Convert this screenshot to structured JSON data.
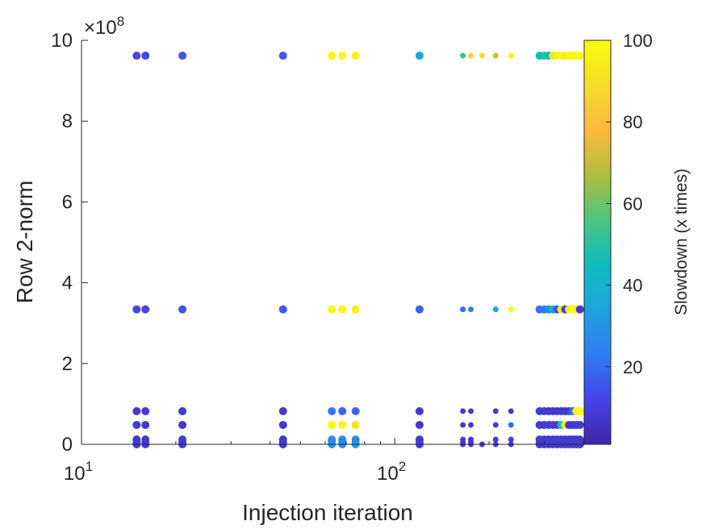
{
  "chart_data": {
    "type": "scatter",
    "title": "",
    "xlabel": "Injection iteration",
    "ylabel": "Row 2-norm",
    "xscale": "log",
    "xlim": [
      10,
      400
    ],
    "ylim": [
      0,
      1000000000
    ],
    "y_multiplier_label": "×10",
    "y_multiplier_exponent": "8",
    "x_ticks": [
      {
        "value": 10,
        "base": "10",
        "exp": "1"
      },
      {
        "value": 100,
        "base": "10",
        "exp": "2"
      }
    ],
    "y_ticks": [
      {
        "value": 0,
        "label": "0"
      },
      {
        "value": 200000000,
        "label": "2"
      },
      {
        "value": 400000000,
        "label": "4"
      },
      {
        "value": 600000000,
        "label": "6"
      },
      {
        "value": 800000000,
        "label": "8"
      },
      {
        "value": 1000000000,
        "label": "10"
      }
    ],
    "colorbar": {
      "label": "Slowdown (x times)",
      "range": [
        1,
        100
      ],
      "ticks": [
        {
          "value": 20,
          "label": "20"
        },
        {
          "value": 40,
          "label": "40"
        },
        {
          "value": 60,
          "label": "60"
        },
        {
          "value": 80,
          "label": "80"
        },
        {
          "value": 100,
          "label": "100"
        }
      ],
      "colormap": [
        "#3e26a8",
        "#4744e8",
        "#2f7cf6",
        "#1fa3de",
        "#0fbbbd",
        "#4ac580",
        "#b0bd3b",
        "#fbba3e",
        "#f4dd2a",
        "#f9fb0e"
      ]
    },
    "rows": [
      962000000,
      334000000,
      82000000,
      48000000,
      12000000,
      5000000,
      0
    ],
    "x": [
      15,
      16,
      21,
      44,
      63,
      68,
      75,
      120,
      165,
      175,
      190,
      210,
      235,
      290,
      300,
      310,
      320,
      330,
      340,
      350,
      360,
      370,
      380,
      390
    ],
    "points": [
      {
        "x": 15,
        "y": 962000000,
        "slowdown": 12
      },
      {
        "x": 16,
        "y": 962000000,
        "slowdown": 12
      },
      {
        "x": 21,
        "y": 962000000,
        "slowdown": 15
      },
      {
        "x": 44,
        "y": 962000000,
        "slowdown": 16
      },
      {
        "x": 63,
        "y": 962000000,
        "slowdown": 98
      },
      {
        "x": 68,
        "y": 962000000,
        "slowdown": 98
      },
      {
        "x": 75,
        "y": 962000000,
        "slowdown": 96
      },
      {
        "x": 120,
        "y": 962000000,
        "slowdown": 35
      },
      {
        "x": 165,
        "y": 962000000,
        "slowdown": 52
      },
      {
        "x": 175,
        "y": 962000000,
        "slowdown": 85
      },
      {
        "x": 190,
        "y": 962000000,
        "slowdown": 90
      },
      {
        "x": 210,
        "y": 962000000,
        "slowdown": 70
      },
      {
        "x": 235,
        "y": 962000000,
        "slowdown": 97
      },
      {
        "x": 290,
        "y": 962000000,
        "slowdown": 45
      },
      {
        "x": 300,
        "y": 962000000,
        "slowdown": 50
      },
      {
        "x": 310,
        "y": 962000000,
        "slowdown": 44
      },
      {
        "x": 320,
        "y": 962000000,
        "slowdown": 93
      },
      {
        "x": 330,
        "y": 962000000,
        "slowdown": 97
      },
      {
        "x": 340,
        "y": 962000000,
        "slowdown": 99
      },
      {
        "x": 350,
        "y": 962000000,
        "slowdown": 95
      },
      {
        "x": 360,
        "y": 962000000,
        "slowdown": 97
      },
      {
        "x": 370,
        "y": 962000000,
        "slowdown": 99
      },
      {
        "x": 380,
        "y": 962000000,
        "slowdown": 98
      },
      {
        "x": 390,
        "y": 962000000,
        "slowdown": 99
      },
      {
        "x": 15,
        "y": 334000000,
        "slowdown": 12
      },
      {
        "x": 16,
        "y": 334000000,
        "slowdown": 12
      },
      {
        "x": 21,
        "y": 334000000,
        "slowdown": 15
      },
      {
        "x": 44,
        "y": 334000000,
        "slowdown": 16
      },
      {
        "x": 63,
        "y": 334000000,
        "slowdown": 98
      },
      {
        "x": 68,
        "y": 334000000,
        "slowdown": 98
      },
      {
        "x": 75,
        "y": 334000000,
        "slowdown": 96
      },
      {
        "x": 120,
        "y": 334000000,
        "slowdown": 18
      },
      {
        "x": 165,
        "y": 334000000,
        "slowdown": 20
      },
      {
        "x": 175,
        "y": 334000000,
        "slowdown": 25
      },
      {
        "x": 210,
        "y": 334000000,
        "slowdown": 35
      },
      {
        "x": 235,
        "y": 334000000,
        "slowdown": 97
      },
      {
        "x": 290,
        "y": 334000000,
        "slowdown": 20
      },
      {
        "x": 300,
        "y": 334000000,
        "slowdown": 22
      },
      {
        "x": 310,
        "y": 334000000,
        "slowdown": 28
      },
      {
        "x": 320,
        "y": 334000000,
        "slowdown": 40
      },
      {
        "x": 330,
        "y": 334000000,
        "slowdown": 15
      },
      {
        "x": 340,
        "y": 334000000,
        "slowdown": 95
      },
      {
        "x": 350,
        "y": 334000000,
        "slowdown": 12
      },
      {
        "x": 360,
        "y": 334000000,
        "slowdown": 97
      },
      {
        "x": 370,
        "y": 334000000,
        "slowdown": 99
      },
      {
        "x": 380,
        "y": 334000000,
        "slowdown": 98
      },
      {
        "x": 390,
        "y": 334000000,
        "slowdown": 8
      },
      {
        "x": 15,
        "y": 82000000,
        "slowdown": 8
      },
      {
        "x": 16,
        "y": 82000000,
        "slowdown": 8
      },
      {
        "x": 21,
        "y": 82000000,
        "slowdown": 8
      },
      {
        "x": 44,
        "y": 82000000,
        "slowdown": 8
      },
      {
        "x": 63,
        "y": 82000000,
        "slowdown": 22
      },
      {
        "x": 68,
        "y": 82000000,
        "slowdown": 18
      },
      {
        "x": 75,
        "y": 82000000,
        "slowdown": 18
      },
      {
        "x": 120,
        "y": 82000000,
        "slowdown": 8
      },
      {
        "x": 165,
        "y": 82000000,
        "slowdown": 8
      },
      {
        "x": 175,
        "y": 82000000,
        "slowdown": 8
      },
      {
        "x": 210,
        "y": 82000000,
        "slowdown": 8
      },
      {
        "x": 235,
        "y": 82000000,
        "slowdown": 8
      },
      {
        "x": 290,
        "y": 82000000,
        "slowdown": 8
      },
      {
        "x": 300,
        "y": 82000000,
        "slowdown": 8
      },
      {
        "x": 310,
        "y": 82000000,
        "slowdown": 8
      },
      {
        "x": 320,
        "y": 82000000,
        "slowdown": 8
      },
      {
        "x": 330,
        "y": 82000000,
        "slowdown": 8
      },
      {
        "x": 340,
        "y": 82000000,
        "slowdown": 8
      },
      {
        "x": 350,
        "y": 82000000,
        "slowdown": 8
      },
      {
        "x": 360,
        "y": 82000000,
        "slowdown": 8
      },
      {
        "x": 370,
        "y": 82000000,
        "slowdown": 20
      },
      {
        "x": 380,
        "y": 82000000,
        "slowdown": 97
      },
      {
        "x": 390,
        "y": 82000000,
        "slowdown": 99
      },
      {
        "x": 15,
        "y": 48000000,
        "slowdown": 8
      },
      {
        "x": 16,
        "y": 48000000,
        "slowdown": 8
      },
      {
        "x": 21,
        "y": 48000000,
        "slowdown": 8
      },
      {
        "x": 44,
        "y": 48000000,
        "slowdown": 8
      },
      {
        "x": 63,
        "y": 48000000,
        "slowdown": 98
      },
      {
        "x": 68,
        "y": 48000000,
        "slowdown": 98
      },
      {
        "x": 75,
        "y": 48000000,
        "slowdown": 92
      },
      {
        "x": 120,
        "y": 48000000,
        "slowdown": 8
      },
      {
        "x": 165,
        "y": 48000000,
        "slowdown": 8
      },
      {
        "x": 175,
        "y": 48000000,
        "slowdown": 8
      },
      {
        "x": 210,
        "y": 48000000,
        "slowdown": 8
      },
      {
        "x": 235,
        "y": 48000000,
        "slowdown": 20
      },
      {
        "x": 290,
        "y": 48000000,
        "slowdown": 8
      },
      {
        "x": 300,
        "y": 48000000,
        "slowdown": 8
      },
      {
        "x": 310,
        "y": 48000000,
        "slowdown": 8
      },
      {
        "x": 320,
        "y": 48000000,
        "slowdown": 8
      },
      {
        "x": 330,
        "y": 48000000,
        "slowdown": 8
      },
      {
        "x": 340,
        "y": 48000000,
        "slowdown": 45
      },
      {
        "x": 350,
        "y": 48000000,
        "slowdown": 97
      },
      {
        "x": 360,
        "y": 48000000,
        "slowdown": 8
      },
      {
        "x": 370,
        "y": 48000000,
        "slowdown": 8
      },
      {
        "x": 380,
        "y": 48000000,
        "slowdown": 8
      },
      {
        "x": 390,
        "y": 48000000,
        "slowdown": 8
      },
      {
        "x": 15,
        "y": 12000000,
        "slowdown": 8
      },
      {
        "x": 16,
        "y": 12000000,
        "slowdown": 8
      },
      {
        "x": 21,
        "y": 12000000,
        "slowdown": 8
      },
      {
        "x": 44,
        "y": 12000000,
        "slowdown": 8
      },
      {
        "x": 63,
        "y": 12000000,
        "slowdown": 30
      },
      {
        "x": 68,
        "y": 12000000,
        "slowdown": 30
      },
      {
        "x": 75,
        "y": 12000000,
        "slowdown": 30
      },
      {
        "x": 120,
        "y": 12000000,
        "slowdown": 8
      },
      {
        "x": 165,
        "y": 12000000,
        "slowdown": 8
      },
      {
        "x": 175,
        "y": 12000000,
        "slowdown": 8
      },
      {
        "x": 210,
        "y": 12000000,
        "slowdown": 8
      },
      {
        "x": 235,
        "y": 12000000,
        "slowdown": 8
      },
      {
        "x": 290,
        "y": 12000000,
        "slowdown": 8
      },
      {
        "x": 300,
        "y": 12000000,
        "slowdown": 8
      },
      {
        "x": 310,
        "y": 12000000,
        "slowdown": 8
      },
      {
        "x": 320,
        "y": 12000000,
        "slowdown": 8
      },
      {
        "x": 330,
        "y": 12000000,
        "slowdown": 8
      },
      {
        "x": 340,
        "y": 12000000,
        "slowdown": 8
      },
      {
        "x": 350,
        "y": 12000000,
        "slowdown": 8
      },
      {
        "x": 360,
        "y": 12000000,
        "slowdown": 8
      },
      {
        "x": 370,
        "y": 12000000,
        "slowdown": 8
      },
      {
        "x": 380,
        "y": 12000000,
        "slowdown": 8
      },
      {
        "x": 390,
        "y": 12000000,
        "slowdown": 8
      },
      {
        "x": 15,
        "y": 5000000,
        "slowdown": 8
      },
      {
        "x": 16,
        "y": 5000000,
        "slowdown": 8
      },
      {
        "x": 21,
        "y": 5000000,
        "slowdown": 8
      },
      {
        "x": 44,
        "y": 5000000,
        "slowdown": 8
      },
      {
        "x": 63,
        "y": 5000000,
        "slowdown": 25
      },
      {
        "x": 68,
        "y": 5000000,
        "slowdown": 25
      },
      {
        "x": 75,
        "y": 5000000,
        "slowdown": 25
      },
      {
        "x": 120,
        "y": 5000000,
        "slowdown": 8
      },
      {
        "x": 165,
        "y": 5000000,
        "slowdown": 8
      },
      {
        "x": 175,
        "y": 5000000,
        "slowdown": 8
      },
      {
        "x": 290,
        "y": 5000000,
        "slowdown": 8
      },
      {
        "x": 310,
        "y": 5000000,
        "slowdown": 8
      },
      {
        "x": 330,
        "y": 5000000,
        "slowdown": 8
      },
      {
        "x": 350,
        "y": 5000000,
        "slowdown": 8
      },
      {
        "x": 370,
        "y": 5000000,
        "slowdown": 8
      },
      {
        "x": 390,
        "y": 5000000,
        "slowdown": 8
      },
      {
        "x": 15,
        "y": 0,
        "slowdown": 8
      },
      {
        "x": 16,
        "y": 0,
        "slowdown": 8
      },
      {
        "x": 21,
        "y": 0,
        "slowdown": 8
      },
      {
        "x": 44,
        "y": 0,
        "slowdown": 8
      },
      {
        "x": 63,
        "y": 0,
        "slowdown": 30
      },
      {
        "x": 68,
        "y": 0,
        "slowdown": 28
      },
      {
        "x": 75,
        "y": 0,
        "slowdown": 30
      },
      {
        "x": 120,
        "y": 0,
        "slowdown": 8
      },
      {
        "x": 165,
        "y": 0,
        "slowdown": 8
      },
      {
        "x": 175,
        "y": 0,
        "slowdown": 8
      },
      {
        "x": 190,
        "y": 0,
        "slowdown": 8
      },
      {
        "x": 210,
        "y": 0,
        "slowdown": 8
      },
      {
        "x": 235,
        "y": 0,
        "slowdown": 8
      },
      {
        "x": 290,
        "y": 0,
        "slowdown": 8
      },
      {
        "x": 300,
        "y": 0,
        "slowdown": 8
      },
      {
        "x": 310,
        "y": 0,
        "slowdown": 8
      },
      {
        "x": 320,
        "y": 0,
        "slowdown": 8
      },
      {
        "x": 330,
        "y": 0,
        "slowdown": 8
      },
      {
        "x": 340,
        "y": 0,
        "slowdown": 8
      },
      {
        "x": 350,
        "y": 0,
        "slowdown": 8
      },
      {
        "x": 360,
        "y": 0,
        "slowdown": 8
      },
      {
        "x": 370,
        "y": 0,
        "slowdown": 8
      },
      {
        "x": 380,
        "y": 0,
        "slowdown": 8
      },
      {
        "x": 390,
        "y": 0,
        "slowdown": 8
      }
    ],
    "grid": false,
    "legend": "none"
  }
}
